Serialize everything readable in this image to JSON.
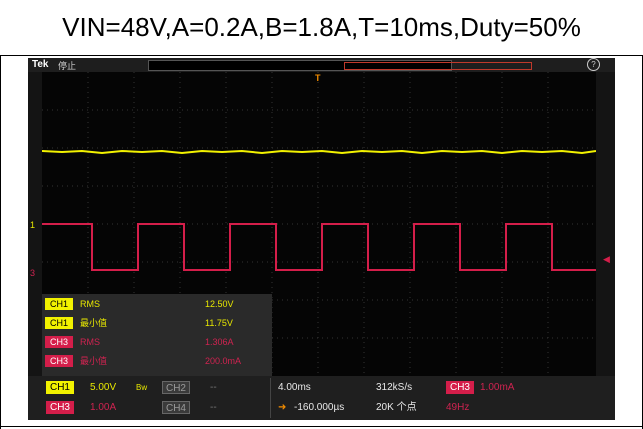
{
  "caption": "VIN=48V,A=0.2A,B=1.8A,T=10ms,Duty=50%",
  "scope": {
    "brand": "Tek",
    "run_state": "停止",
    "help_icon": "?",
    "trigger_marker": "T",
    "ch1_marker": "1",
    "ch3_marker": "3",
    "colors": {
      "ch1": "#f2f200",
      "ch3": "#d41e4a",
      "background": "#050505"
    }
  },
  "measurements": [
    {
      "channel": "CH1",
      "name": "RMS",
      "value": "12.50V"
    },
    {
      "channel": "CH1",
      "name": "最小值",
      "value": "11.75V"
    },
    {
      "channel": "CH3",
      "name": "RMS",
      "value": "1.306A"
    },
    {
      "channel": "CH3",
      "name": "最小值",
      "value": "200.0mA"
    }
  ],
  "bottom_bar": {
    "ch1_label": "CH1",
    "ch1_scale": "5.00V",
    "ch1_bw": "Bw",
    "ch2_label": "CH2",
    "ch2_value": "--",
    "ch3_label": "CH3",
    "ch3_scale": "1.00A",
    "ch4_label": "CH4",
    "ch4_value": "--",
    "timebase": "4.00ms",
    "sample_rate": "312kS/s",
    "trigger_source": "CH3",
    "trigger_level": "1.00mA",
    "position": "-160.000µs",
    "record_length": "20K 个点",
    "frequency": "49Hz"
  }
}
